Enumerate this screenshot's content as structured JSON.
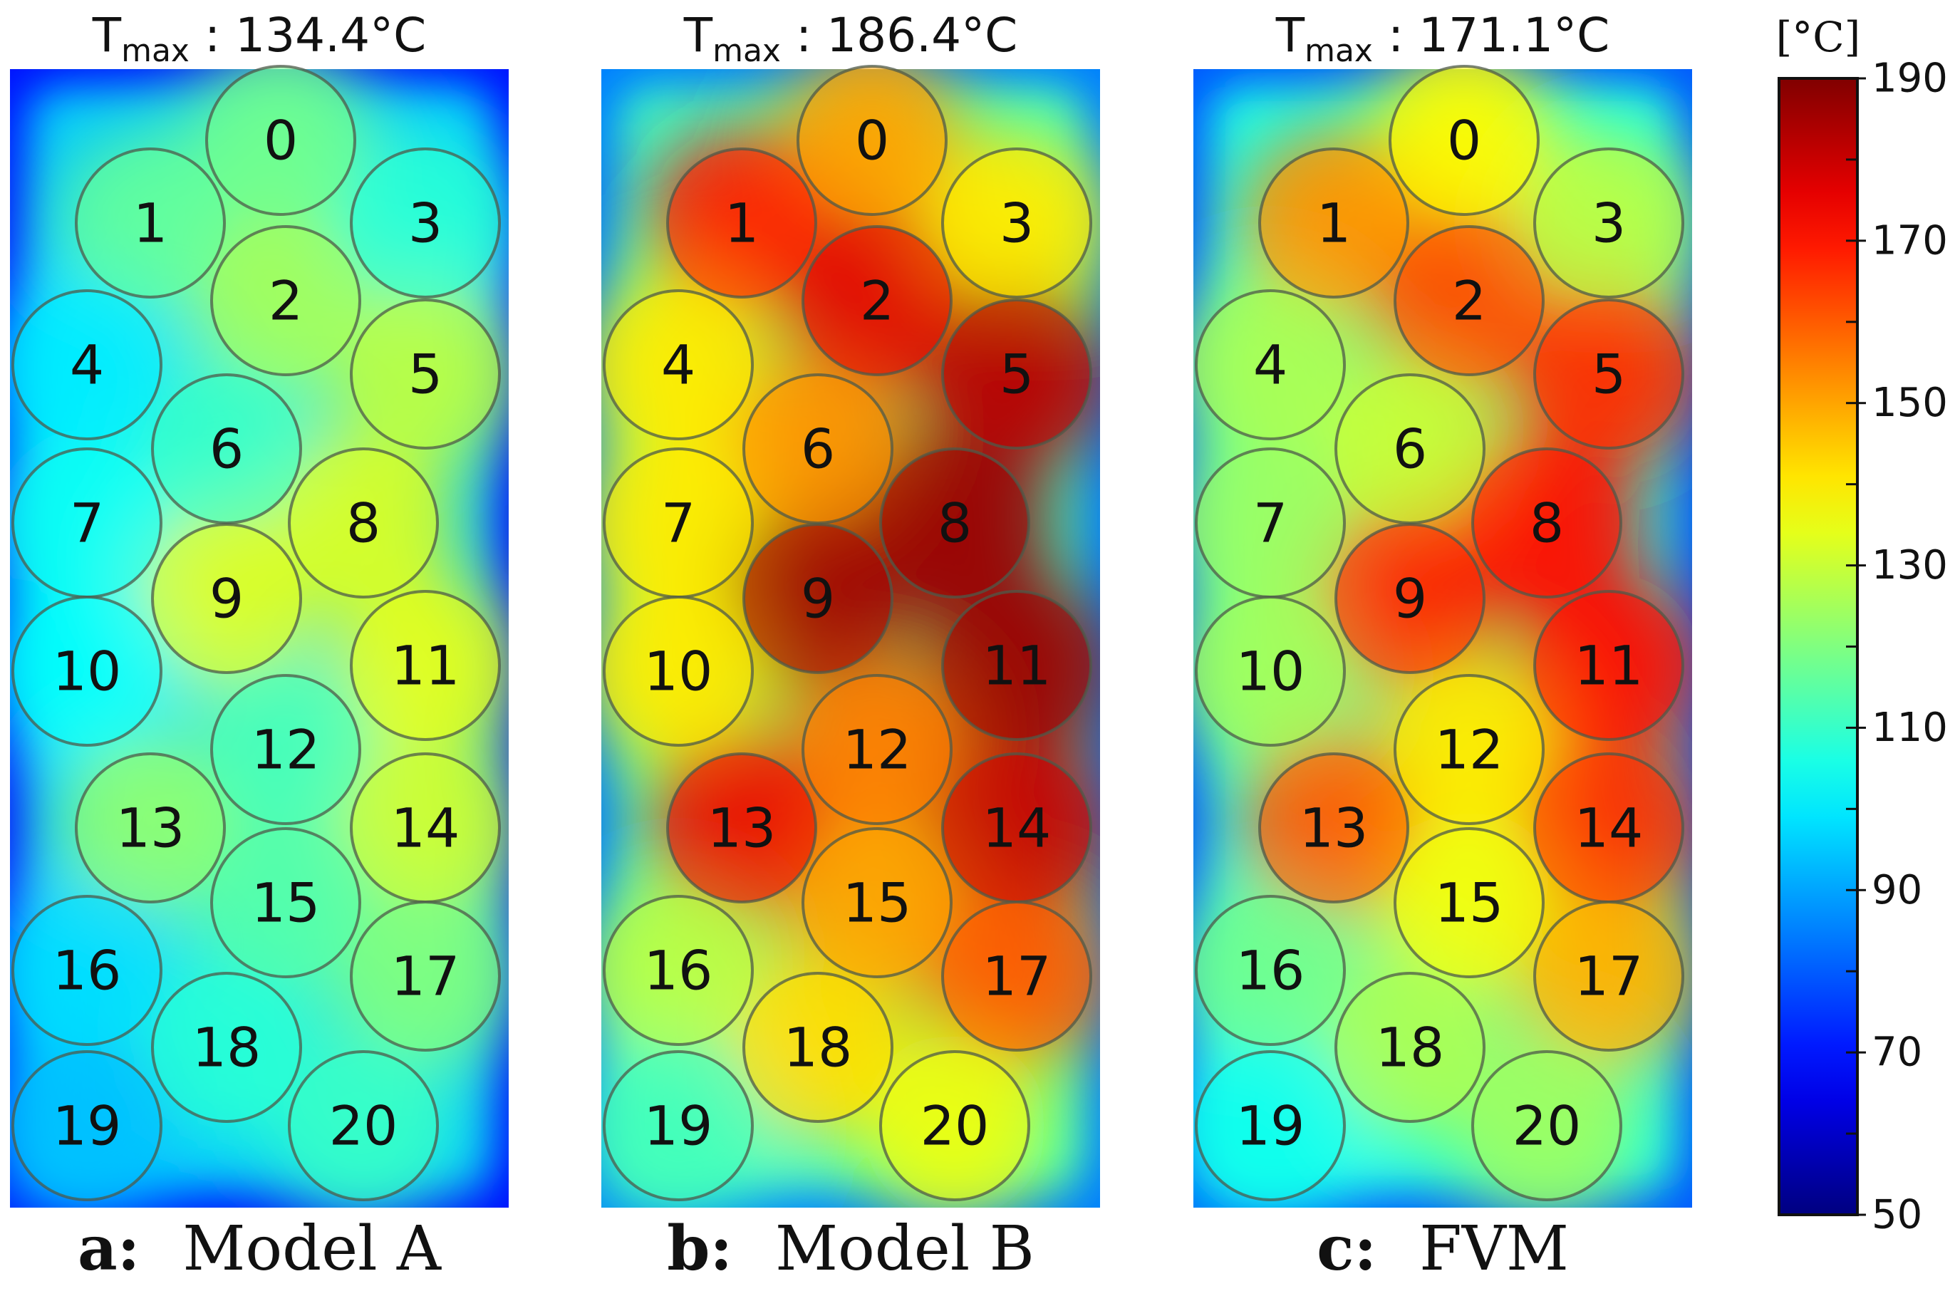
{
  "chart_data": {
    "type": "heatmap",
    "colorbar": {
      "unit_label": "[°C]",
      "ticks": [
        50,
        70,
        90,
        110,
        130,
        150,
        170,
        190
      ],
      "range": [
        50,
        190
      ],
      "colormap": "jet",
      "placement": "right"
    },
    "panels": [
      {
        "title_main": "T",
        "title_sub": "max",
        "title_value": " : 134.4°C",
        "t_max": 134.4,
        "caption_letter": "a:",
        "caption_text": "Model A",
        "background_temp": 95,
        "cells": [
          {
            "id": "0",
            "temp": 118
          },
          {
            "id": "1",
            "temp": 116
          },
          {
            "id": "2",
            "temp": 125
          },
          {
            "id": "3",
            "temp": 108
          },
          {
            "id": "4",
            "temp": 100
          },
          {
            "id": "5",
            "temp": 128
          },
          {
            "id": "6",
            "temp": 110
          },
          {
            "id": "7",
            "temp": 104
          },
          {
            "id": "8",
            "temp": 132
          },
          {
            "id": "9",
            "temp": 133
          },
          {
            "id": "10",
            "temp": 103
          },
          {
            "id": "11",
            "temp": 134
          },
          {
            "id": "12",
            "temp": 112
          },
          {
            "id": "13",
            "temp": 122
          },
          {
            "id": "14",
            "temp": 131
          },
          {
            "id": "15",
            "temp": 114
          },
          {
            "id": "16",
            "temp": 98
          },
          {
            "id": "17",
            "temp": 120
          },
          {
            "id": "18",
            "temp": 108
          },
          {
            "id": "19",
            "temp": 94
          },
          {
            "id": "20",
            "temp": 110
          }
        ]
      },
      {
        "title_main": "T",
        "title_sub": "max",
        "title_value": " : 186.4°C",
        "t_max": 186.4,
        "caption_letter": "b:",
        "caption_text": "Model B",
        "background_temp": 110,
        "cells": [
          {
            "id": "0",
            "temp": 150
          },
          {
            "id": "1",
            "temp": 168
          },
          {
            "id": "2",
            "temp": 176
          },
          {
            "id": "3",
            "temp": 140
          },
          {
            "id": "4",
            "temp": 140
          },
          {
            "id": "5",
            "temp": 182
          },
          {
            "id": "6",
            "temp": 152
          },
          {
            "id": "7",
            "temp": 140
          },
          {
            "id": "8",
            "temp": 186
          },
          {
            "id": "9",
            "temp": 185
          },
          {
            "id": "10",
            "temp": 140
          },
          {
            "id": "11",
            "temp": 186
          },
          {
            "id": "12",
            "temp": 155
          },
          {
            "id": "13",
            "temp": 175
          },
          {
            "id": "14",
            "temp": 180
          },
          {
            "id": "15",
            "temp": 150
          },
          {
            "id": "16",
            "temp": 128
          },
          {
            "id": "17",
            "temp": 160
          },
          {
            "id": "18",
            "temp": 142
          },
          {
            "id": "19",
            "temp": 112
          },
          {
            "id": "20",
            "temp": 135
          }
        ]
      },
      {
        "title_main": "T",
        "title_sub": "max",
        "title_value": " : 171.1°C",
        "t_max": 171.1,
        "caption_letter": "c:",
        "caption_text": "FVM",
        "background_temp": 105,
        "cells": [
          {
            "id": "0",
            "temp": 138
          },
          {
            "id": "1",
            "temp": 152
          },
          {
            "id": "2",
            "temp": 162
          },
          {
            "id": "3",
            "temp": 128
          },
          {
            "id": "4",
            "temp": 126
          },
          {
            "id": "5",
            "temp": 166
          },
          {
            "id": "6",
            "temp": 130
          },
          {
            "id": "7",
            "temp": 124
          },
          {
            "id": "8",
            "temp": 170
          },
          {
            "id": "9",
            "temp": 168
          },
          {
            "id": "10",
            "temp": 125
          },
          {
            "id": "11",
            "temp": 171
          },
          {
            "id": "12",
            "temp": 140
          },
          {
            "id": "13",
            "temp": 160
          },
          {
            "id": "14",
            "temp": 166
          },
          {
            "id": "15",
            "temp": 136
          },
          {
            "id": "16",
            "temp": 118
          },
          {
            "id": "17",
            "temp": 148
          },
          {
            "id": "18",
            "temp": 126
          },
          {
            "id": "19",
            "temp": 105
          },
          {
            "id": "20",
            "temp": 124
          }
        ]
      }
    ]
  }
}
